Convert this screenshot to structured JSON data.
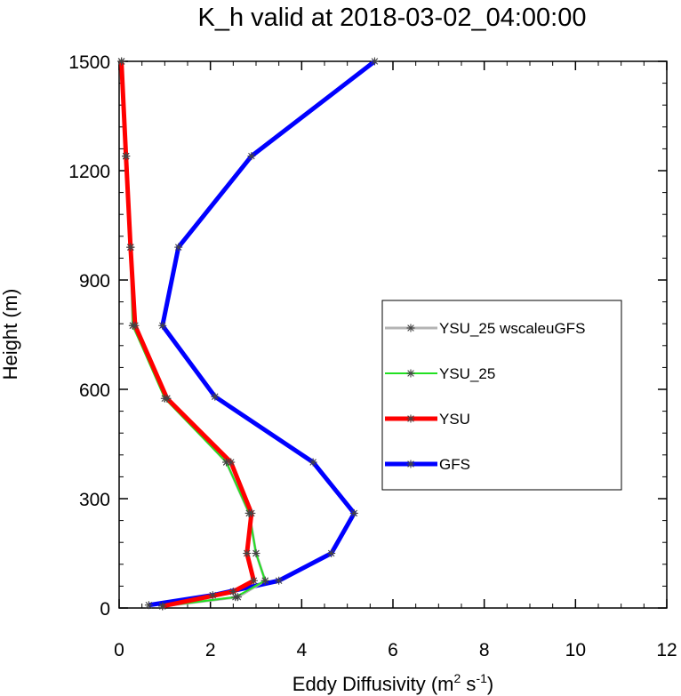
{
  "chart_data": {
    "type": "line",
    "title": "K_h valid at 2018-03-02_04:00:00",
    "xlabel": "Eddy Diffusivity (m",
    "xlabel_sup1": "2",
    "xlabel_mid": " s",
    "xlabel_sup2": "-1",
    "xlabel_end": ")",
    "ylabel": "Height (m)",
    "xlim": [
      0,
      12
    ],
    "ylim": [
      0,
      1500
    ],
    "x_ticks": [
      "0",
      "2",
      "4",
      "6",
      "8",
      "10",
      "12"
    ],
    "y_ticks": [
      "0",
      "300",
      "600",
      "900",
      "1200",
      "1500"
    ],
    "x_tick_values": [
      0,
      2,
      4,
      6,
      8,
      10,
      12
    ],
    "y_tick_values": [
      0,
      300,
      600,
      900,
      1200,
      1500
    ],
    "grid": false,
    "legend_position": "right",
    "series": [
      {
        "name": "YSU_25 wscaleuGFS",
        "color": "#b4b4b4",
        "width": 3,
        "points": [
          [
            0.95,
            5
          ],
          [
            2.6,
            30
          ],
          [
            3.2,
            75
          ],
          [
            3.0,
            150
          ],
          [
            2.85,
            260
          ],
          [
            2.35,
            400
          ],
          [
            1.05,
            575
          ],
          [
            0.3,
            775
          ],
          [
            0.25,
            990
          ],
          [
            0.15,
            1240
          ],
          [
            0.05,
            1500
          ]
        ]
      },
      {
        "name": "YSU_25",
        "color": "#22e022",
        "width": 2,
        "points": [
          [
            0.95,
            5
          ],
          [
            2.55,
            30
          ],
          [
            3.2,
            75
          ],
          [
            3.0,
            150
          ],
          [
            2.85,
            260
          ],
          [
            2.35,
            400
          ],
          [
            1.0,
            575
          ],
          [
            0.3,
            775
          ],
          [
            0.25,
            990
          ],
          [
            0.15,
            1240
          ],
          [
            0.05,
            1500
          ]
        ]
      },
      {
        "name": "YSU",
        "color": "#ff0000",
        "width": 5,
        "points": [
          [
            0.95,
            5
          ],
          [
            2.5,
            45
          ],
          [
            2.95,
            75
          ],
          [
            2.8,
            150
          ],
          [
            2.9,
            260
          ],
          [
            2.45,
            400
          ],
          [
            1.05,
            575
          ],
          [
            0.35,
            775
          ],
          [
            0.25,
            990
          ],
          [
            0.15,
            1240
          ],
          [
            0.05,
            1500
          ]
        ]
      },
      {
        "name": "GFS",
        "color": "#0000ff",
        "width": 5,
        "points": [
          [
            0.65,
            8
          ],
          [
            2.05,
            35
          ],
          [
            3.5,
            75
          ],
          [
            4.65,
            150
          ],
          [
            5.15,
            260
          ],
          [
            4.25,
            400
          ],
          [
            2.1,
            580
          ],
          [
            0.95,
            775
          ],
          [
            1.3,
            990
          ],
          [
            2.9,
            1240
          ],
          [
            5.6,
            1500
          ]
        ]
      }
    ]
  }
}
